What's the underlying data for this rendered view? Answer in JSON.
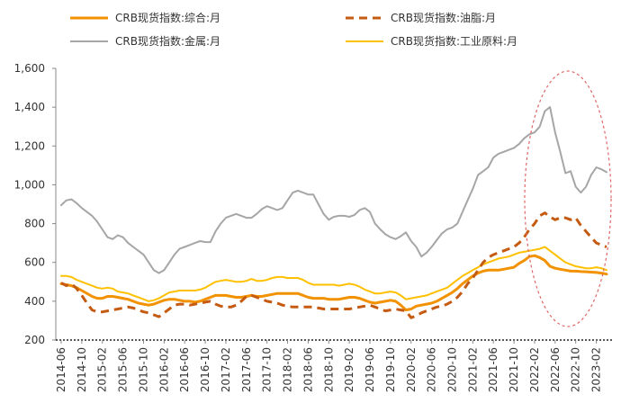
{
  "chart_data": {
    "type": "line",
    "title": "",
    "xlabel": "",
    "ylabel": "",
    "ylim": [
      200,
      1600
    ],
    "yticks": [
      200,
      400,
      600,
      800,
      1000,
      1200,
      1400,
      1600
    ],
    "ytick_labels": [
      "200",
      "400",
      "600",
      "800",
      "1,000",
      "1,200",
      "1,400",
      "1,600"
    ],
    "grid": false,
    "legend_position": "top",
    "xtick_labels": [
      "2014-06",
      "2014-10",
      "2015-02",
      "2015-06",
      "2015-10",
      "2016-02",
      "2016-06",
      "2016-10",
      "2017-02",
      "2017-06",
      "2017-10",
      "2018-02",
      "2018-06",
      "2018-10",
      "2019-02",
      "2019-06",
      "2019-10",
      "2020-02",
      "2020-06",
      "2020-10",
      "2021-02",
      "2021-06",
      "2021-10",
      "2022-02",
      "2022-06",
      "2022-10",
      "2023-02"
    ],
    "x": [
      "2014-06",
      "2014-07",
      "2014-08",
      "2014-09",
      "2014-10",
      "2014-11",
      "2014-12",
      "2015-01",
      "2015-02",
      "2015-03",
      "2015-04",
      "2015-05",
      "2015-06",
      "2015-07",
      "2015-08",
      "2015-09",
      "2015-10",
      "2015-11",
      "2015-12",
      "2016-01",
      "2016-02",
      "2016-03",
      "2016-04",
      "2016-05",
      "2016-06",
      "2016-07",
      "2016-08",
      "2016-09",
      "2016-10",
      "2016-11",
      "2016-12",
      "2017-01",
      "2017-02",
      "2017-03",
      "2017-04",
      "2017-05",
      "2017-06",
      "2017-07",
      "2017-08",
      "2017-09",
      "2017-10",
      "2017-11",
      "2017-12",
      "2018-01",
      "2018-02",
      "2018-03",
      "2018-04",
      "2018-05",
      "2018-06",
      "2018-07",
      "2018-08",
      "2018-09",
      "2018-10",
      "2018-11",
      "2018-12",
      "2019-01",
      "2019-02",
      "2019-03",
      "2019-04",
      "2019-05",
      "2019-06",
      "2019-07",
      "2019-08",
      "2019-09",
      "2019-10",
      "2019-11",
      "2019-12",
      "2020-01",
      "2020-02",
      "2020-03",
      "2020-04",
      "2020-05",
      "2020-06",
      "2020-07",
      "2020-08",
      "2020-09",
      "2020-10",
      "2020-11",
      "2020-12",
      "2021-01",
      "2021-02",
      "2021-03",
      "2021-04",
      "2021-05",
      "2021-06",
      "2021-07",
      "2021-08",
      "2021-09",
      "2021-10",
      "2021-11",
      "2021-12",
      "2022-01",
      "2022-02",
      "2022-03",
      "2022-04",
      "2022-05",
      "2022-06",
      "2022-07",
      "2022-08",
      "2022-09",
      "2022-10",
      "2022-11",
      "2022-12",
      "2023-01",
      "2023-02",
      "2023-03",
      "2023-04"
    ],
    "series": [
      {
        "name": "CRB现货指数:综合:月",
        "color": "#f29200",
        "dash": "solid",
        "width": 3,
        "values": [
          490,
          485,
          480,
          470,
          455,
          440,
          425,
          415,
          415,
          425,
          425,
          420,
          415,
          410,
          400,
          390,
          385,
          380,
          385,
          395,
          405,
          410,
          410,
          405,
          400,
          400,
          395,
          400,
          410,
          420,
          430,
          430,
          430,
          425,
          420,
          420,
          425,
          430,
          425,
          425,
          430,
          435,
          440,
          440,
          440,
          440,
          440,
          430,
          420,
          415,
          415,
          415,
          410,
          410,
          410,
          415,
          420,
          420,
          415,
          405,
          395,
          390,
          395,
          400,
          405,
          400,
          380,
          355,
          360,
          375,
          380,
          385,
          390,
          400,
          415,
          430,
          445,
          465,
          490,
          510,
          530,
          545,
          555,
          560,
          560,
          560,
          565,
          570,
          575,
          595,
          610,
          630,
          635,
          625,
          610,
          580,
          570,
          565,
          560,
          555,
          555,
          553,
          552,
          550,
          548,
          545,
          540
        ]
      },
      {
        "name": "CRB现货指数:油脂:月",
        "color": "#c55a11",
        "dash": "9,6",
        "width": 3,
        "values": [
          495,
          480,
          490,
          465,
          430,
          390,
          355,
          345,
          345,
          350,
          355,
          360,
          365,
          370,
          365,
          355,
          345,
          340,
          330,
          320,
          340,
          360,
          380,
          385,
          385,
          380,
          385,
          390,
          395,
          400,
          385,
          375,
          370,
          370,
          380,
          400,
          425,
          430,
          420,
          410,
          400,
          395,
          390,
          380,
          375,
          370,
          370,
          370,
          370,
          370,
          365,
          360,
          360,
          360,
          360,
          360,
          360,
          365,
          370,
          375,
          380,
          370,
          360,
          350,
          355,
          360,
          355,
          350,
          315,
          325,
          340,
          350,
          360,
          370,
          375,
          385,
          400,
          420,
          450,
          490,
          520,
          560,
          600,
          625,
          640,
          650,
          660,
          670,
          680,
          700,
          730,
          770,
          800,
          840,
          855,
          835,
          820,
          830,
          830,
          820,
          830,
          790,
          760,
          730,
          700,
          690,
          680
        ]
      },
      {
        "name": "CRB现货指数:金属:月",
        "color": "#a6a6a6",
        "dash": "solid",
        "width": 2,
        "values": [
          895,
          920,
          925,
          905,
          880,
          860,
          840,
          810,
          770,
          730,
          720,
          740,
          730,
          700,
          680,
          660,
          640,
          600,
          560,
          545,
          560,
          600,
          640,
          670,
          680,
          690,
          700,
          710,
          705,
          705,
          760,
          800,
          830,
          840,
          850,
          840,
          830,
          830,
          850,
          875,
          890,
          880,
          870,
          880,
          920,
          960,
          970,
          960,
          950,
          950,
          900,
          850,
          820,
          835,
          840,
          840,
          835,
          845,
          870,
          880,
          860,
          800,
          770,
          745,
          730,
          720,
          735,
          755,
          710,
          680,
          630,
          650,
          680,
          715,
          750,
          770,
          780,
          800,
          860,
          920,
          980,
          1050,
          1070,
          1090,
          1140,
          1160,
          1170,
          1180,
          1190,
          1210,
          1240,
          1260,
          1270,
          1300,
          1380,
          1400,
          1270,
          1170,
          1060,
          1070,
          990,
          960,
          990,
          1050,
          1090,
          1080,
          1065
        ]
      },
      {
        "name": "CRB现货指数:工业原料:月",
        "color": "#ffc000",
        "dash": "solid",
        "width": 2,
        "values": [
          530,
          530,
          525,
          510,
          500,
          490,
          480,
          470,
          465,
          470,
          465,
          450,
          445,
          440,
          430,
          420,
          410,
          400,
          405,
          415,
          430,
          445,
          450,
          455,
          455,
          455,
          455,
          460,
          470,
          485,
          500,
          505,
          510,
          505,
          500,
          500,
          505,
          515,
          505,
          505,
          510,
          520,
          525,
          525,
          520,
          520,
          520,
          510,
          495,
          485,
          485,
          485,
          485,
          485,
          480,
          485,
          490,
          485,
          475,
          460,
          450,
          440,
          440,
          445,
          450,
          445,
          430,
          410,
          415,
          420,
          425,
          430,
          440,
          450,
          460,
          470,
          490,
          510,
          530,
          545,
          560,
          575,
          590,
          600,
          610,
          620,
          625,
          630,
          640,
          650,
          655,
          660,
          665,
          670,
          680,
          660,
          640,
          620,
          600,
          590,
          580,
          575,
          570,
          570,
          575,
          570,
          560
        ]
      }
    ]
  }
}
